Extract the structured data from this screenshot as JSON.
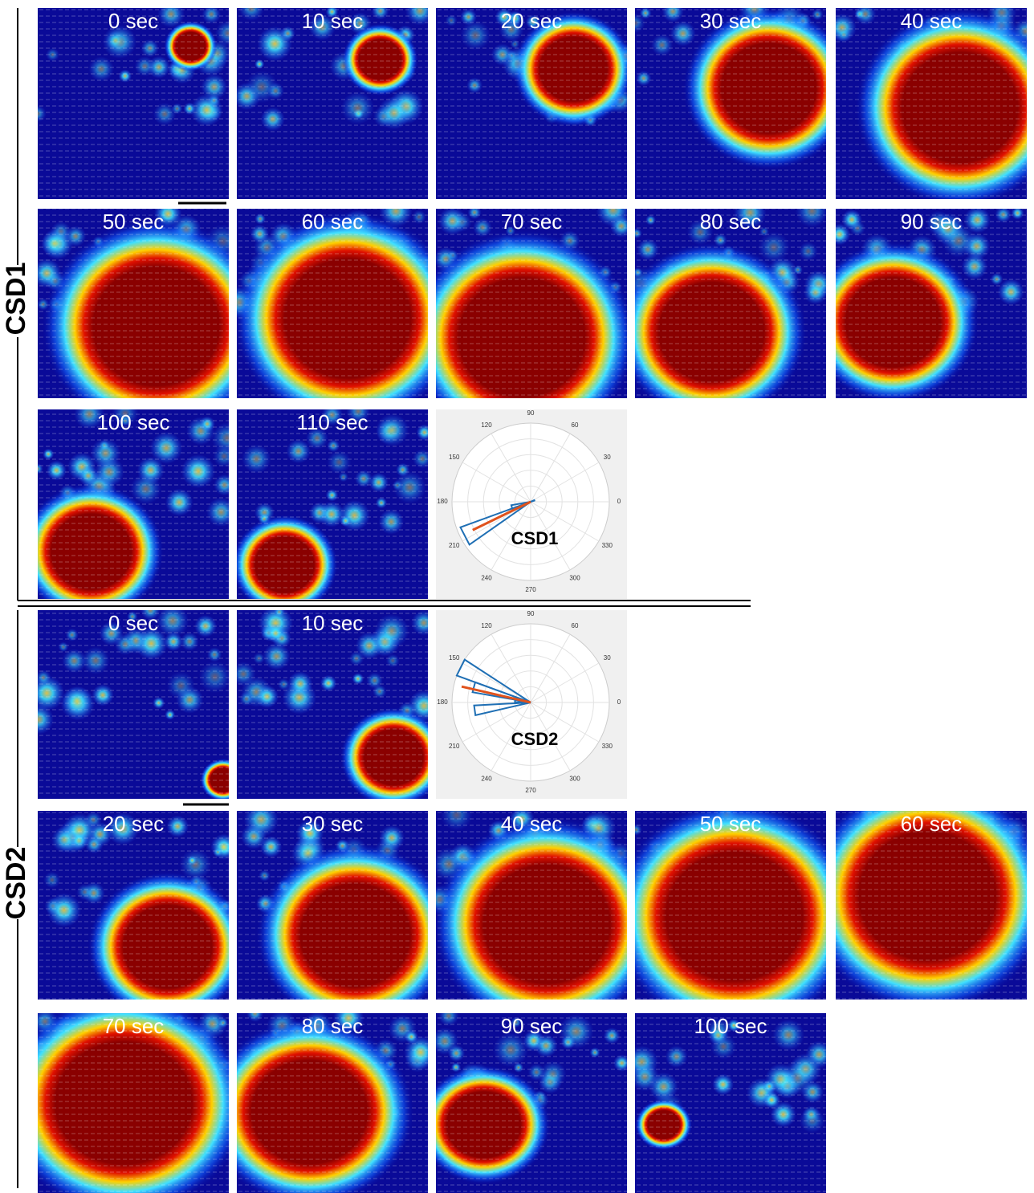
{
  "groups": [
    {
      "label": "CSD1",
      "panels": [
        "0 sec",
        "10 sec",
        "20 sec",
        "30 sec",
        "40 sec",
        "50 sec",
        "60 sec",
        "70 sec",
        "80 sec",
        "90 sec",
        "100 sec",
        "110 sec"
      ],
      "polar": {
        "label": "CSD1",
        "angles": [
          90,
          60,
          30,
          0,
          330,
          300,
          270,
          240,
          210,
          180,
          150,
          120
        ]
      }
    },
    {
      "label": "CSD2",
      "panels": [
        "0 sec",
        "10 sec",
        "20 sec",
        "30 sec",
        "40 sec",
        "50 sec",
        "60 sec",
        "70 sec",
        "80 sec",
        "90 sec",
        "100 sec"
      ],
      "polar": {
        "label": "CSD2",
        "angles": [
          90,
          60,
          30,
          0,
          330,
          300,
          270,
          240,
          210,
          180,
          150,
          120
        ]
      }
    }
  ]
}
